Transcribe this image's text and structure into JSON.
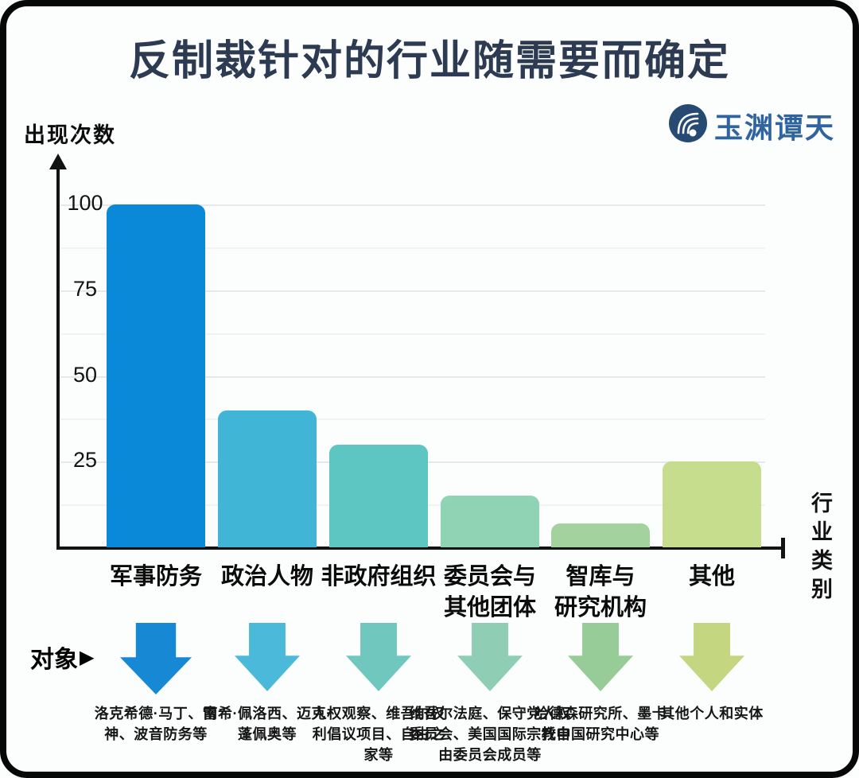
{
  "title": "反制裁针对的行业随需要而确定",
  "logo": {
    "name": "玉渊谭天"
  },
  "pointer_glyph": "▶",
  "chart_data": {
    "type": "bar",
    "title": "反制裁针对的行业随需要而确定",
    "ylabel": "出现次数",
    "xlabel": "行业类别",
    "categories": [
      "军事防务",
      "政治人物",
      "非政府组织",
      "委员会与\n其他团体",
      "智库与\n研究机构",
      "其他"
    ],
    "values": [
      100,
      40,
      30,
      15,
      7,
      25
    ],
    "bar_colors": [
      "#0989d8",
      "#41b5d6",
      "#5ec6c2",
      "#90d2b4",
      "#a3d29e",
      "#c6dd8e"
    ],
    "yticks": [
      100,
      75,
      50,
      25
    ],
    "ylim": [
      0,
      110
    ],
    "grid": "faint horizontal lines every 12.5",
    "legend_position": "none"
  },
  "targets": {
    "label": "对象",
    "items": [
      {
        "arrow_color": "#1788d4",
        "text": "洛克希德·马丁、雷神、波音防务等"
      },
      {
        "arrow_color": "#4ab9da",
        "text": "南希·佩洛西、迈克·蓬佩奥等"
      },
      {
        "arrow_color": "#6fc7be",
        "text": "人权观察、维吾尔权利倡议项目、自由之家等"
      },
      {
        "arrow_color": "#8fceb4",
        "text": "维吾尔法庭、保守党人权委员会、美国国际宗教自由委员会成员等"
      },
      {
        "arrow_color": "#97cb97",
        "text": "哈德森研究所、墨卡托中国研究中心等"
      },
      {
        "arrow_color": "#c4d680",
        "text": "其他个人和实体"
      }
    ]
  }
}
